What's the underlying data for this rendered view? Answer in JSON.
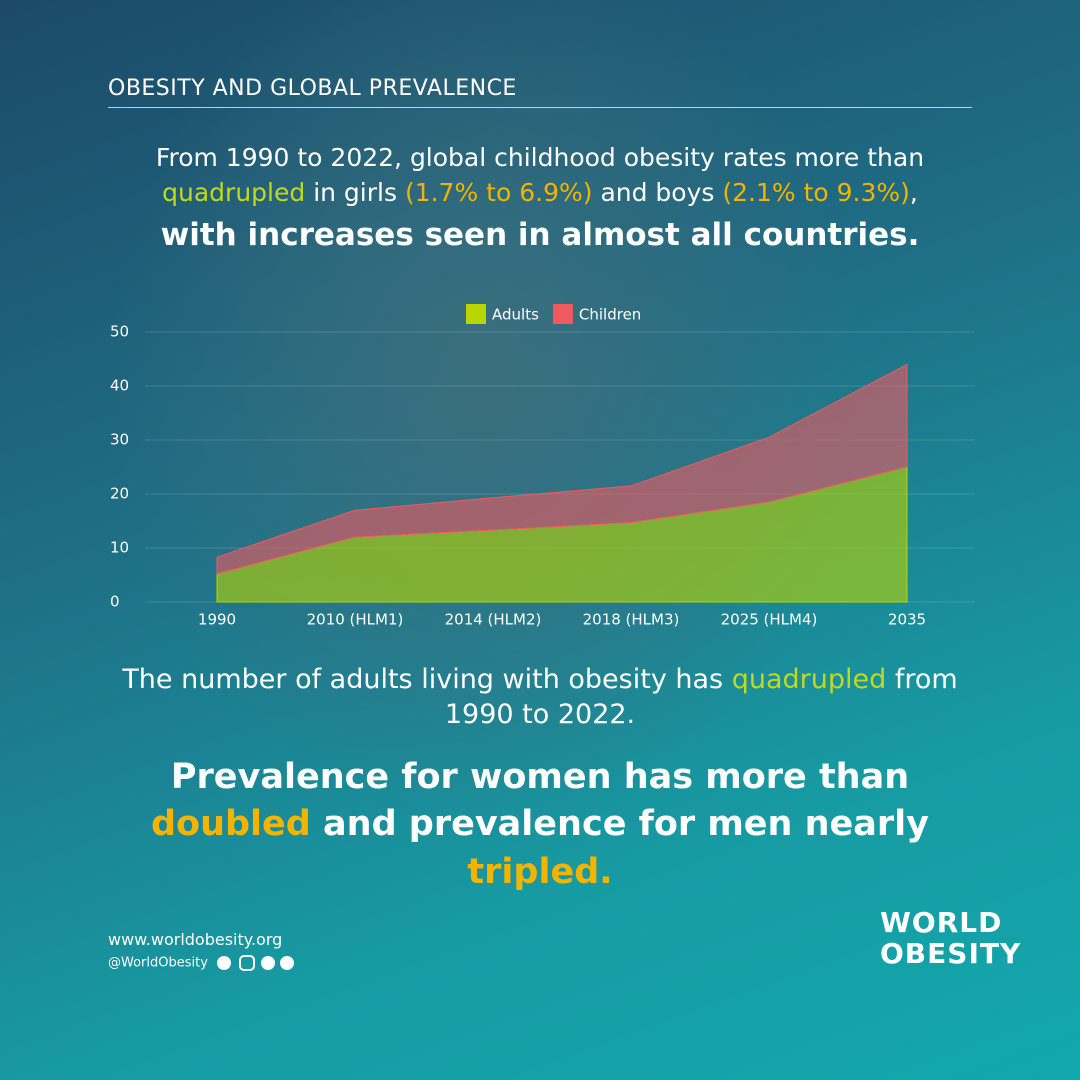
{
  "header": "OBESITY AND GLOBAL PREVALENCE",
  "headline": {
    "parts": [
      "From 1990 to 2022, global childhood obesity rates more than",
      "quadrupled",
      "in girls",
      "(1.7% to 6.9%)",
      "and boys",
      "(2.1% to 9.3%)",
      ","
    ],
    "bold": "with increases seen in almost all countries."
  },
  "chart_data": {
    "type": "stacked_area",
    "categories": [
      "1990",
      "2010 (HLM1)",
      "2014 (HLM2)",
      "2018 (HLM3)",
      "2025 (HLM4)",
      "2035"
    ],
    "series": [
      {
        "name": "Adults",
        "color": "#b9d600",
        "values": [
          5.2,
          12,
          13.3,
          14.7,
          18.5,
          25
        ]
      },
      {
        "name": "Children",
        "color": "#ee5a60",
        "values": [
          3.1,
          5,
          6,
          6.8,
          12,
          19
        ]
      }
    ],
    "ylim": [
      0,
      50
    ],
    "yticks": [
      0,
      10,
      20,
      30,
      40,
      50
    ],
    "grid": true,
    "legend": "top"
  },
  "body": {
    "parts": [
      "The number of adults living with obesity has",
      "quadrupled",
      "from 1990 to 2022."
    ]
  },
  "closing": {
    "parts": [
      "Prevalence for women has more than",
      "doubled",
      "and prevalence for men nearly",
      "tripled."
    ]
  },
  "footer": {
    "website": "www.worldobesity.org",
    "handle": "@WorldObesity"
  },
  "logo": {
    "line1": "WORLD",
    "line2": "OBESITY"
  }
}
